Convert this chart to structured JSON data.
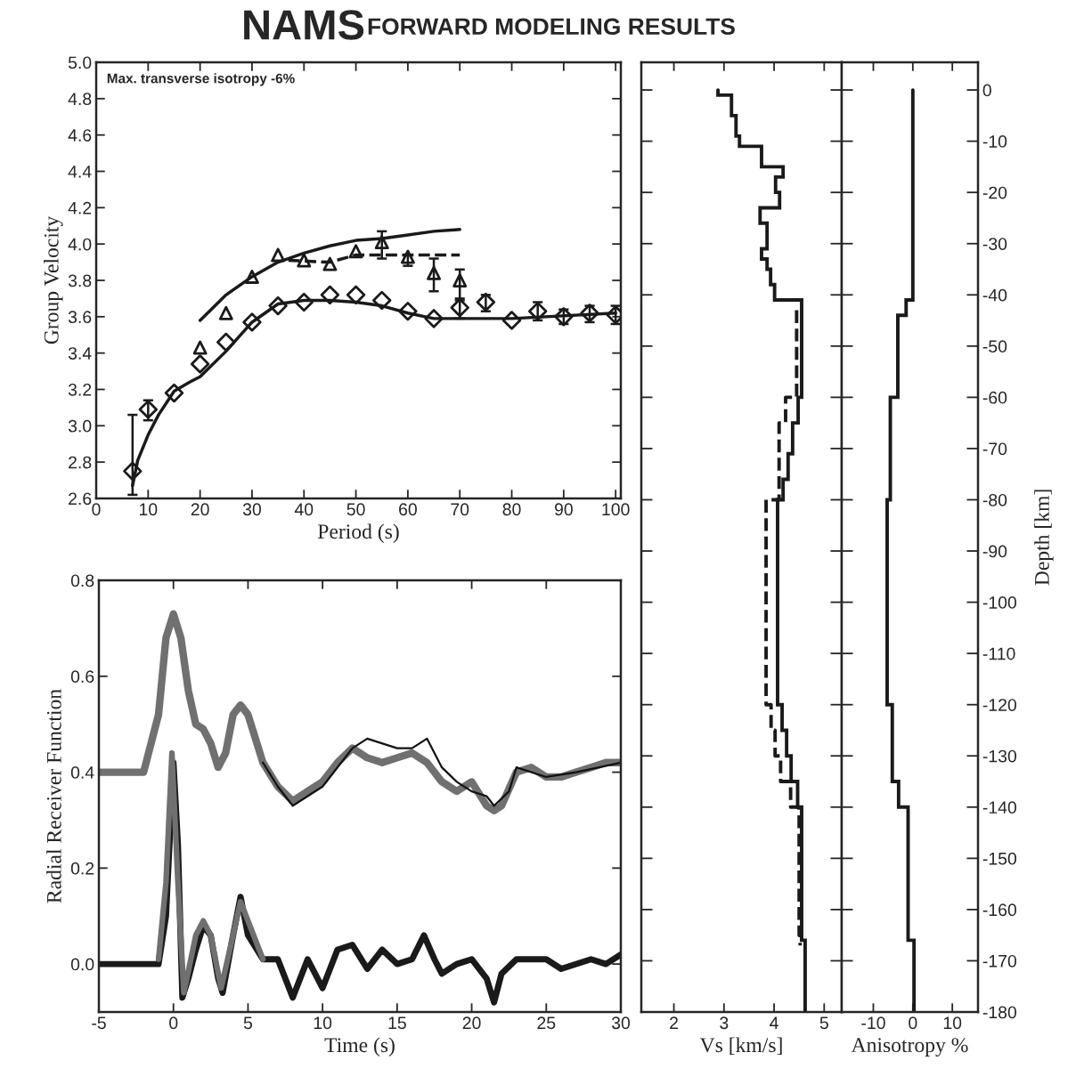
{
  "chart_data": [
    {
      "type": "line",
      "title": "NAMS",
      "subtitle": "FORWARD MODELING RESULTS",
      "xlabel": "Period (s)",
      "ylabel": "Group Velocity",
      "annotations": [
        "Max. transverse isotropy -6%"
      ],
      "xlim": [
        0,
        101
      ],
      "ylim": [
        2.6,
        5.0
      ],
      "xticks": [
        0,
        10,
        20,
        30,
        40,
        50,
        60,
        70,
        80,
        90,
        100
      ],
      "yticks": [
        {
          "value": 2.6,
          "label": "2.6"
        },
        {
          "value": 2.8,
          "label": "2.8"
        },
        {
          "value": 3.0,
          "label": "3.0"
        },
        {
          "value": 3.2,
          "label": "3.2"
        },
        {
          "value": 3.4,
          "label": "3.4"
        },
        {
          "value": 3.6,
          "label": "3.6"
        },
        {
          "value": 3.8,
          "label": "3.8"
        },
        {
          "value": 4.0,
          "label": "4.0"
        },
        {
          "value": 4.2,
          "label": "4.2"
        },
        {
          "value": 4.4,
          "label": "4.4"
        },
        {
          "value": 4.6,
          "label": "4.6"
        },
        {
          "value": 4.8,
          "label": "4.8"
        },
        {
          "value": 5.0,
          "label": "5.0"
        }
      ],
      "series": [
        {
          "type": "line",
          "color": "#1a1a1a",
          "line_style": "solid",
          "x": [
            20,
            25,
            30,
            35,
            40,
            45,
            50,
            55,
            60,
            65,
            70
          ],
          "values": [
            3.58,
            3.72,
            3.82,
            3.9,
            3.95,
            3.99,
            4.02,
            4.03,
            4.05,
            4.07,
            4.08
          ]
        },
        {
          "type": "line",
          "color": "#1a1a1a",
          "line_style": "solid",
          "x": [
            7,
            8,
            10,
            12,
            15,
            18,
            20,
            25,
            30,
            35,
            40,
            45,
            50,
            55,
            60,
            65,
            70,
            80,
            100
          ],
          "values": [
            2.67,
            2.81,
            2.95,
            3.06,
            3.19,
            3.24,
            3.27,
            3.41,
            3.57,
            3.67,
            3.69,
            3.69,
            3.68,
            3.66,
            3.62,
            3.59,
            3.59,
            3.59,
            3.62
          ]
        },
        {
          "type": "line",
          "color": "#1a1a1a",
          "line_style": "dashed",
          "x": [
            37,
            45,
            50,
            70
          ],
          "values": [
            3.91,
            3.9,
            3.94,
            3.94
          ]
        },
        {
          "type": "scatter",
          "color": "#1a1a1a",
          "marker": "triangle",
          "x": [
            20,
            25,
            30,
            35,
            40,
            45,
            50,
            55,
            60,
            65,
            70
          ],
          "values": [
            3.43,
            3.62,
            3.82,
            3.94,
            3.91,
            3.89,
            3.96,
            4.01,
            3.93,
            3.84,
            3.8
          ],
          "errors": [
            null,
            null,
            null,
            null,
            null,
            null,
            null,
            [
              3.92,
              4.07
            ],
            [
              3.88,
              3.94
            ],
            [
              3.74,
              3.92
            ],
            [
              3.69,
              3.86
            ]
          ]
        },
        {
          "type": "scatter",
          "color": "#1a1a1a",
          "marker": "diamond",
          "x": [
            7,
            10,
            15,
            20,
            25,
            30,
            35,
            40,
            45,
            50,
            55,
            60,
            65,
            70,
            75,
            80,
            85,
            90,
            95,
            100
          ],
          "values": [
            2.75,
            3.09,
            3.18,
            3.34,
            3.46,
            3.57,
            3.66,
            3.68,
            3.72,
            3.72,
            3.69,
            3.63,
            3.59,
            3.65,
            3.68,
            3.58,
            3.63,
            3.6,
            3.62,
            3.61
          ],
          "errors": [
            [
              2.62,
              3.06
            ],
            [
              3.03,
              3.14
            ],
            null,
            null,
            null,
            null,
            null,
            null,
            null,
            null,
            null,
            null,
            null,
            [
              3.59,
              3.7
            ],
            [
              3.63,
              3.72
            ],
            null,
            [
              3.58,
              3.68
            ],
            [
              3.56,
              3.64
            ],
            [
              3.57,
              3.66
            ],
            [
              3.56,
              3.66
            ]
          ]
        }
      ]
    },
    {
      "type": "line",
      "xlabel": "Time (s)",
      "ylabel": "Radial Receiver Function",
      "xlim": [
        -5,
        30
      ],
      "ylim": [
        -0.1,
        0.8
      ],
      "xticks": [
        -5,
        0,
        5,
        10,
        15,
        20,
        25,
        30
      ],
      "yticks": [
        {
          "value": 0.0,
          "label": "0.0"
        },
        {
          "value": 0.2,
          "label": "0.2"
        },
        {
          "value": 0.4,
          "label": "0.4"
        },
        {
          "value": 0.6,
          "label": "0.6"
        },
        {
          "value": 0.8,
          "label": "0.8"
        }
      ],
      "series": [
        {
          "color": "#707070",
          "x": [
            -5,
            -2,
            -1,
            -0.5,
            0,
            0.5,
            1,
            1.5,
            2,
            2.5,
            3,
            3.5,
            4,
            4.5,
            5,
            6,
            7,
            8,
            9,
            10,
            11,
            12,
            13,
            14,
            15,
            16,
            17,
            18,
            19,
            20,
            21,
            21.5,
            22,
            23,
            24,
            25,
            26,
            27,
            28,
            29,
            30
          ],
          "values": [
            0.4,
            0.4,
            0.52,
            0.68,
            0.73,
            0.68,
            0.57,
            0.5,
            0.49,
            0.46,
            0.41,
            0.44,
            0.52,
            0.54,
            0.52,
            0.42,
            0.37,
            0.34,
            0.36,
            0.38,
            0.42,
            0.45,
            0.43,
            0.42,
            0.43,
            0.44,
            0.42,
            0.38,
            0.36,
            0.38,
            0.33,
            0.32,
            0.33,
            0.4,
            0.41,
            0.39,
            0.39,
            0.4,
            0.41,
            0.42,
            0.42
          ]
        },
        {
          "color": "#111111",
          "x": [
            6,
            7,
            8,
            10,
            12,
            13,
            15,
            16,
            17,
            18,
            19,
            20,
            21,
            21.5,
            22.5,
            23,
            25,
            27,
            30
          ],
          "values": [
            0.42,
            0.37,
            0.33,
            0.37,
            0.45,
            0.47,
            0.45,
            0.45,
            0.47,
            0.41,
            0.38,
            0.36,
            0.35,
            0.33,
            0.36,
            0.41,
            0.39,
            0.4,
            0.42
          ]
        },
        {
          "color": "#1a1a1a",
          "x": [
            -5,
            -1,
            -0.5,
            0,
            0.3,
            0.6,
            1,
            1.5,
            2,
            2.5,
            3,
            3.3,
            4,
            4.5,
            5,
            6,
            7,
            8,
            9,
            10,
            11,
            12,
            13,
            14,
            15,
            16,
            16.8,
            17.5,
            18,
            19,
            20,
            21,
            21.5,
            22,
            23,
            25,
            26,
            28,
            29,
            30
          ],
          "values": [
            0,
            0,
            0.1,
            0.42,
            0.25,
            -0.07,
            -0.03,
            0.03,
            0.08,
            0.06,
            -0.03,
            -0.06,
            0.06,
            0.14,
            0.06,
            0.01,
            0.01,
            -0.07,
            0.01,
            -0.05,
            0.03,
            0.04,
            -0.01,
            0.03,
            0,
            0.01,
            0.06,
            0.01,
            -0.02,
            0,
            0.01,
            -0.03,
            -0.08,
            -0.02,
            0.01,
            0.01,
            -0.01,
            0.01,
            0,
            0.02
          ]
        },
        {
          "color": "#707070",
          "x": [
            -1,
            -0.5,
            -0.1,
            0.3,
            0.7,
            1.5,
            2,
            2.5,
            3.2,
            4.5,
            6
          ],
          "values": [
            0.01,
            0.17,
            0.44,
            0.17,
            -0.06,
            0.06,
            0.09,
            0.06,
            -0.05,
            0.13,
            0.01
          ]
        }
      ]
    },
    {
      "type": "step",
      "orientation": "horizontal",
      "xlabel": "Vs [km/s]",
      "tick_labels": "x",
      "xlim": [
        1.35,
        5.35
      ],
      "ylim": [
        -180,
        5.4
      ],
      "xticks": [
        2,
        3,
        4,
        5
      ],
      "yticks": [
        0,
        -10,
        -20,
        -30,
        -40,
        -50,
        -60,
        -70,
        -80,
        -90,
        -100,
        -110,
        -120,
        -130,
        -140,
        -150,
        -160,
        -170,
        -180
      ],
      "series": [
        {
          "color": "#1a1a1a",
          "line_style": "solid",
          "x": [
            0,
            -1,
            -5,
            -9,
            -11,
            -15,
            -17,
            -20,
            -23,
            -26,
            -31,
            -33,
            -35,
            -38,
            -41,
            -60,
            -65,
            -71,
            -76,
            -80,
            -120,
            -125,
            -130,
            -135,
            -140,
            -166,
            -180
          ],
          "values": [
            2.88,
            3.15,
            3.24,
            3.31,
            3.75,
            4.18,
            4.03,
            4.11,
            3.72,
            3.86,
            3.75,
            3.86,
            3.93,
            4.01,
            4.55,
            4.48,
            4.37,
            4.28,
            4.18,
            4.07,
            4.16,
            4.25,
            4.34,
            4.47,
            4.55,
            4.62,
            4.62
          ]
        },
        {
          "color": "#1a1a1a",
          "line_style": "dashed",
          "x": [
            -43,
            -60,
            -65,
            -80,
            -120,
            -125,
            -130,
            -135,
            -140,
            -165,
            -167
          ],
          "values": [
            4.45,
            4.23,
            4.1,
            3.84,
            3.94,
            4.02,
            4.13,
            4.33,
            4.5,
            4.52,
            4.52
          ]
        }
      ]
    },
    {
      "type": "step",
      "orientation": "horizontal",
      "xlabel": "Anisotropy %",
      "ylabel": "Depth [km]",
      "xlim": [
        -18,
        16.5
      ],
      "ylim": [
        -180,
        5.4
      ],
      "xticks": [
        -10,
        0,
        10
      ],
      "yticks": [
        0,
        -10,
        -20,
        -30,
        -40,
        -50,
        -60,
        -70,
        -80,
        -90,
        -100,
        -110,
        -120,
        -130,
        -140,
        -150,
        -160,
        -170,
        -180
      ],
      "series": [
        {
          "color": "#1a1a1a",
          "line_style": "solid",
          "x": [
            0,
            -41,
            -44,
            -60,
            -80,
            -120,
            -135,
            -140,
            -166,
            -180
          ],
          "values": [
            0,
            -1.7,
            -3.8,
            -5.7,
            -6.5,
            -5.2,
            -3.6,
            -1.2,
            0.3,
            0.3
          ]
        }
      ]
    }
  ]
}
